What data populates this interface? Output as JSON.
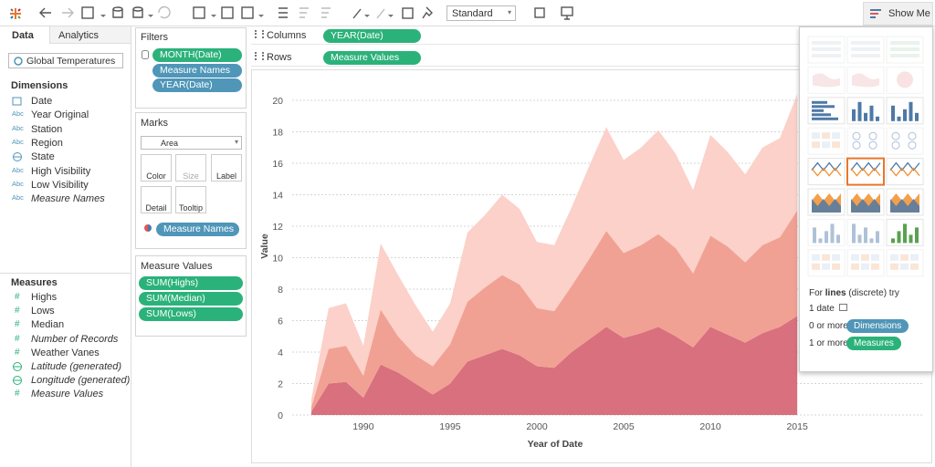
{
  "toolbar": {
    "view_size": "Standard",
    "show_me": "Show Me"
  },
  "data_pane": {
    "tabs": [
      "Data",
      "Analytics"
    ],
    "data_source": "Global Temperatures",
    "dimensions_title": "Dimensions",
    "dimensions": [
      {
        "kind": "date",
        "label": "Date"
      },
      {
        "kind": "string",
        "icon": "Abc",
        "label": "Year Original"
      },
      {
        "kind": "string",
        "icon": "Abc",
        "label": "Station"
      },
      {
        "kind": "string",
        "icon": "Abc",
        "label": "Region"
      },
      {
        "kind": "geo",
        "label": "State"
      },
      {
        "kind": "string",
        "icon": "Abc",
        "label": "High Visibility"
      },
      {
        "kind": "string",
        "icon": "Abc",
        "label": "Low Visibility"
      },
      {
        "kind": "string",
        "icon": "Abc",
        "label": "Measure Names",
        "italic": true
      }
    ],
    "measures_title": "Measures",
    "measures": [
      {
        "kind": "number",
        "icon": "#",
        "label": "Highs"
      },
      {
        "kind": "number",
        "icon": "#",
        "label": "Lows"
      },
      {
        "kind": "number",
        "icon": "#",
        "label": "Median"
      },
      {
        "kind": "number",
        "icon": "#",
        "label": "Number of Records",
        "italic": true
      },
      {
        "kind": "number",
        "icon": "#",
        "label": "Weather Vanes"
      },
      {
        "kind": "geo",
        "label": "Latitude (generated)",
        "italic": true
      },
      {
        "kind": "geo",
        "label": "Longitude (generated)",
        "italic": true
      },
      {
        "kind": "number",
        "icon": "#",
        "label": "Measure Values",
        "italic": true
      }
    ]
  },
  "filters": {
    "title": "Filters",
    "pills": [
      {
        "label": "MONTH(Date)",
        "color": "#2bb27a"
      },
      {
        "label": "Measure Names",
        "color": "#4f96b8"
      },
      {
        "label": "YEAR(Date)",
        "color": "#4f96b8"
      }
    ]
  },
  "marks": {
    "title": "Marks",
    "mark_type": "Area",
    "buttons": [
      "Color",
      "Size",
      "Label",
      "Detail",
      "Tooltip"
    ],
    "pill": {
      "label": "Measure Names",
      "color": "#4f96b8"
    }
  },
  "measure_values": {
    "title": "Measure Values",
    "pills": [
      {
        "label": "SUM(Highs)",
        "color": "#2bb27a"
      },
      {
        "label": "SUM(Median)",
        "color": "#2bb27a"
      },
      {
        "label": "SUM(Lows)",
        "color": "#2bb27a"
      }
    ]
  },
  "shelves": [
    {
      "label": "Columns",
      "pill": {
        "label": "YEAR(Date)",
        "color": "#2bb27a"
      }
    },
    {
      "label": "Rows",
      "pill": {
        "label": "Measure Values",
        "color": "#2bb27a"
      }
    }
  ],
  "show_me": {
    "hint": [
      "For ",
      "lines",
      " (discrete) try"
    ],
    "requirements": [
      {
        "text": "1 date"
      },
      {
        "text": "0 or more",
        "pill": "Dimensions",
        "color": "#4f96b8"
      },
      {
        "text": "1 or more",
        "pill": "Measures",
        "color": "#2bb27a"
      }
    ]
  },
  "chart_data": {
    "type": "area",
    "stacked": true,
    "xlabel": "Year of Date",
    "ylabel": "Value",
    "x": [
      1987,
      1988,
      1989,
      1990,
      1991,
      1992,
      1993,
      1994,
      1995,
      1996,
      1997,
      1998,
      1999,
      2000,
      2001,
      2002,
      2003,
      2004,
      2005,
      2006,
      2007,
      2008,
      2009,
      2010,
      2011,
      2012,
      2013,
      2014,
      2015
    ],
    "series": [
      {
        "name": "Lows",
        "color": "#d9707e",
        "values": [
          0.2,
          2.0,
          2.1,
          1.1,
          3.2,
          2.7,
          2.0,
          1.3,
          2.0,
          3.4,
          3.8,
          4.2,
          3.8,
          3.1,
          3.0,
          4.0,
          4.8,
          5.6,
          4.9,
          5.2,
          5.6,
          5.0,
          4.3,
          5.6,
          5.1,
          4.6,
          5.2,
          5.6,
          6.3
        ]
      },
      {
        "name": "Median",
        "color": "#f1a193",
        "values": [
          0.3,
          2.2,
          2.3,
          1.4,
          3.5,
          2.3,
          1.8,
          1.8,
          2.5,
          3.8,
          4.3,
          4.7,
          4.5,
          3.7,
          3.6,
          4.2,
          5.1,
          6.1,
          5.4,
          5.6,
          5.9,
          5.6,
          4.7,
          5.8,
          5.6,
          5.1,
          5.6,
          5.7,
          6.7
        ]
      },
      {
        "name": "Highs",
        "color": "#fbd1c9",
        "values": [
          0.5,
          2.6,
          2.7,
          1.9,
          4.2,
          3.9,
          3.2,
          2.2,
          2.6,
          4.4,
          4.6,
          5.1,
          4.8,
          4.2,
          4.2,
          5.0,
          5.9,
          6.6,
          5.9,
          6.2,
          6.6,
          6.0,
          5.3,
          6.4,
          6.0,
          5.6,
          6.2,
          6.3,
          7.4
        ]
      }
    ],
    "xlim": [
      1985.9,
      2022.2
    ],
    "xticks": [
      1990,
      1995,
      2000,
      2005,
      2010,
      2015
    ],
    "ylim": [
      0,
      21.2
    ],
    "yticks": [
      0,
      2,
      4,
      6,
      8,
      10,
      12,
      14,
      16,
      18,
      20
    ],
    "grid": true
  }
}
